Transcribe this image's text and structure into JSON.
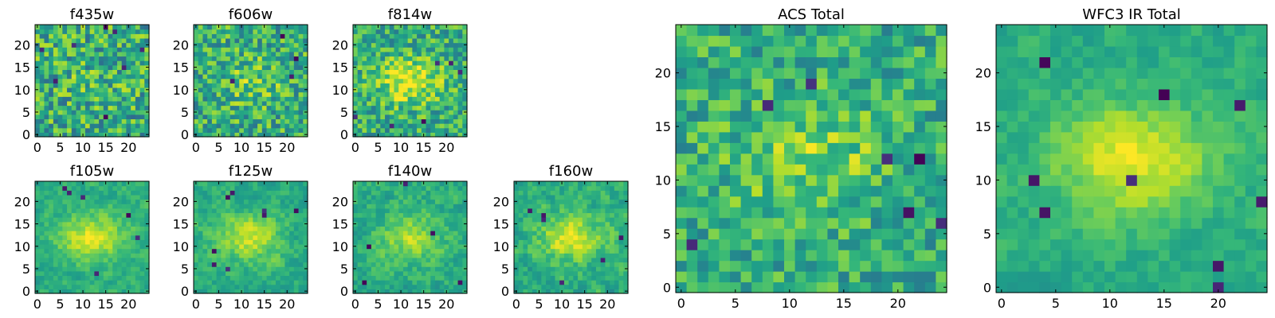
{
  "chart_data": [
    {
      "type": "heatmap",
      "title": "f435w",
      "xticks": [
        "0",
        "5",
        "10",
        "15",
        "20"
      ],
      "yticks": [
        "0",
        "5",
        "10",
        "15",
        "20"
      ],
      "xlim": [
        0,
        24
      ],
      "ylim": [
        0,
        24
      ],
      "grid": false,
      "colormap": "viridis"
    },
    {
      "type": "heatmap",
      "title": "f606w",
      "xticks": [
        "0",
        "5",
        "10",
        "15",
        "20"
      ],
      "yticks": [
        "0",
        "5",
        "10",
        "15",
        "20"
      ],
      "xlim": [
        0,
        24
      ],
      "ylim": [
        0,
        24
      ],
      "grid": false,
      "colormap": "viridis"
    },
    {
      "type": "heatmap",
      "title": "f814w",
      "xticks": [
        "0",
        "5",
        "10",
        "15",
        "20"
      ],
      "yticks": [
        "0",
        "5",
        "10",
        "15",
        "20"
      ],
      "xlim": [
        0,
        24
      ],
      "ylim": [
        0,
        24
      ],
      "grid": false,
      "colormap": "viridis"
    },
    {
      "type": "heatmap",
      "title": "f105w",
      "xticks": [
        "0",
        "5",
        "10",
        "15",
        "20"
      ],
      "yticks": [
        "0",
        "5",
        "10",
        "15",
        "20"
      ],
      "xlim": [
        0,
        24
      ],
      "ylim": [
        0,
        24
      ],
      "grid": false,
      "colormap": "viridis"
    },
    {
      "type": "heatmap",
      "title": "f125w",
      "xticks": [
        "0",
        "5",
        "10",
        "15",
        "20"
      ],
      "yticks": [
        "0",
        "5",
        "10",
        "15",
        "20"
      ],
      "xlim": [
        0,
        24
      ],
      "ylim": [
        0,
        24
      ],
      "grid": false,
      "colormap": "viridis"
    },
    {
      "type": "heatmap",
      "title": "f140w",
      "xticks": [
        "0",
        "5",
        "10",
        "15",
        "20"
      ],
      "yticks": [
        "0",
        "5",
        "10",
        "15",
        "20"
      ],
      "xlim": [
        0,
        24
      ],
      "ylim": [
        0,
        24
      ],
      "grid": false,
      "colormap": "viridis"
    },
    {
      "type": "heatmap",
      "title": "f160w",
      "xticks": [
        "0",
        "5",
        "10",
        "15",
        "20"
      ],
      "yticks": [
        "0",
        "5",
        "10",
        "15",
        "20"
      ],
      "xlim": [
        0,
        24
      ],
      "ylim": [
        0,
        24
      ],
      "grid": false,
      "colormap": "viridis"
    },
    {
      "type": "heatmap",
      "title": "ACS Total",
      "xticks": [
        "0",
        "5",
        "10",
        "15",
        "20"
      ],
      "yticks": [
        "0",
        "5",
        "10",
        "15",
        "20"
      ],
      "xlim": [
        0,
        24
      ],
      "ylim": [
        0,
        24
      ],
      "grid": false,
      "colormap": "viridis"
    },
    {
      "type": "heatmap",
      "title": "WFC3 IR Total",
      "xticks": [
        "0",
        "5",
        "10",
        "15",
        "20"
      ],
      "yticks": [
        "0",
        "5",
        "10",
        "15",
        "20"
      ],
      "xlim": [
        0,
        24
      ],
      "ylim": [
        0,
        24
      ],
      "grid": false,
      "colormap": "viridis"
    }
  ]
}
